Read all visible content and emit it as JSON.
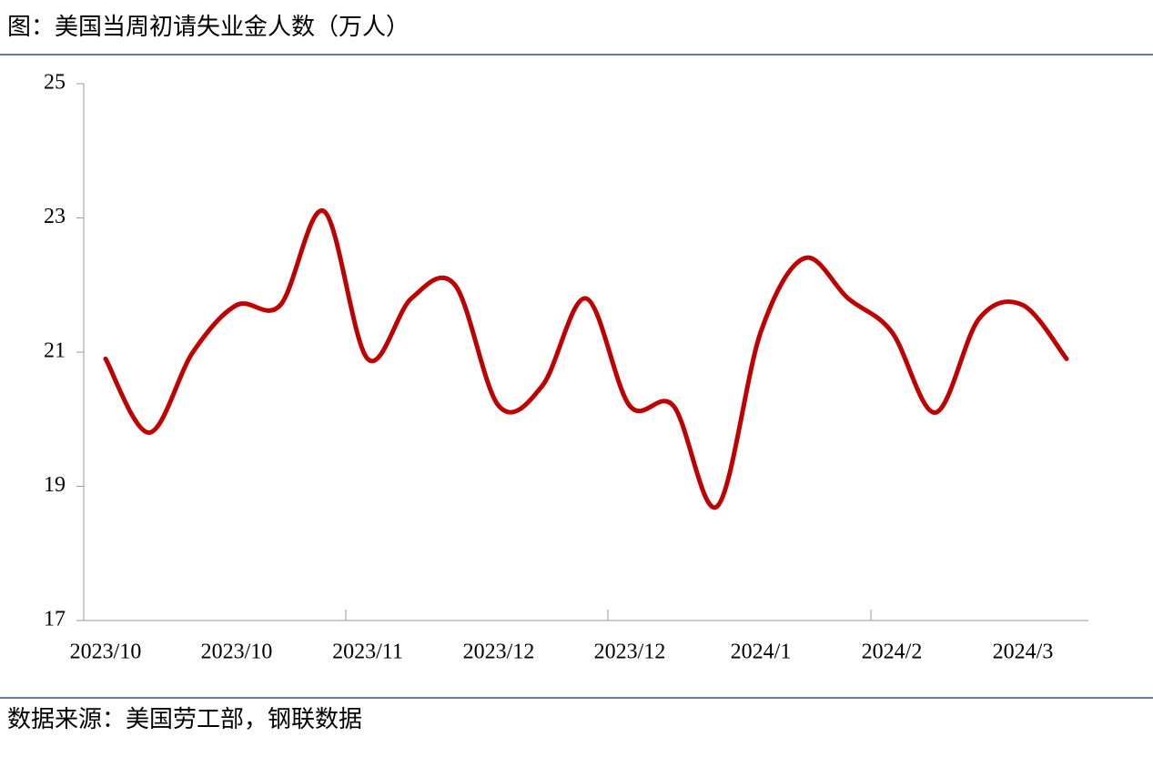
{
  "title": "图：美国当周初请失业金人数（万人）",
  "source": "数据来源：美国劳工部，钢联数据",
  "chart_data": {
    "type": "line",
    "smooth": true,
    "categories": [
      "2023/10",
      null,
      null,
      "2023/10",
      null,
      null,
      "2023/11",
      null,
      null,
      "2023/12",
      null,
      null,
      "2023/12",
      null,
      null,
      "2024/1",
      null,
      null,
      "2024/2",
      null,
      null,
      "2024/3",
      null
    ],
    "series": [
      {
        "color": "#c00000",
        "values": [
          20.9,
          19.8,
          21.0,
          21.7,
          21.7,
          23.1,
          20.9,
          21.8,
          22.0,
          20.2,
          20.5,
          21.8,
          20.2,
          20.2,
          18.7,
          21.3,
          22.4,
          21.8,
          21.3,
          20.1,
          21.5,
          21.7,
          20.9
        ]
      }
    ],
    "ylim": [
      17,
      25
    ],
    "yticks": [
      17,
      19,
      21,
      23,
      25
    ]
  }
}
